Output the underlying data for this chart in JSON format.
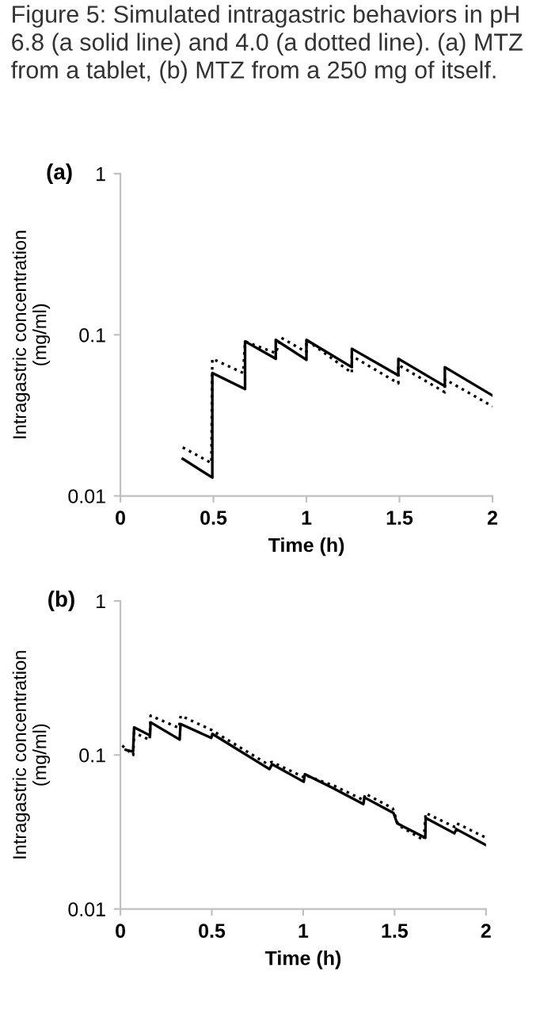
{
  "chart_data": [
    {
      "type": "line",
      "title": "Figure 5: Simulated intragastric behaviors in pH 6.8 (a solid line) and 4.0 (a dotted line). (a) MTZ from a tablet, (b) MTZ from a 250 mg of itself.",
      "annotations": [
        "(a)"
      ],
      "xlabel": "Time (h)",
      "ylabel": "Intragastric concentration\n(mg/ml)",
      "log": "y",
      "xlim": [
        0,
        2
      ],
      "ylim": [
        0.01,
        1
      ],
      "xticks": [
        0,
        0.5,
        1,
        1.5,
        2
      ],
      "yticks": [
        0.01,
        0.1,
        1
      ],
      "grid": false,
      "legend": false,
      "series": [
        {
          "color": "#000000",
          "line_style": "solid",
          "x": [
            0.335,
            0.494,
            0.494,
            0.67,
            0.67,
            0.835,
            0.835,
            1.0,
            1.0,
            1.244,
            1.244,
            1.494,
            1.494,
            1.744,
            1.744,
            2.0
          ],
          "values": [
            0.017,
            0.013,
            0.058,
            0.046,
            0.091,
            0.071,
            0.093,
            0.07,
            0.093,
            0.063,
            0.082,
            0.056,
            0.071,
            0.048,
            0.063,
            0.042
          ]
        },
        {
          "color": "#000000",
          "line_style": "dotted",
          "x": [
            0.335,
            0.489,
            0.494,
            0.66,
            0.67,
            0.835,
            0.864,
            1.0,
            1.0,
            1.244,
            1.244,
            1.494,
            1.494,
            1.744,
            1.744,
            2.0
          ],
          "values": [
            0.02,
            0.016,
            0.071,
            0.058,
            0.091,
            0.077,
            0.096,
            0.078,
            0.093,
            0.058,
            0.074,
            0.05,
            0.065,
            0.044,
            0.053,
            0.036
          ]
        }
      ]
    },
    {
      "type": "line",
      "annotations": [
        "(b)"
      ],
      "xlabel": "Time (h)",
      "ylabel": "Intragastric concentration\n(mg/ml)",
      "log": "y",
      "xlim": [
        0,
        2
      ],
      "ylim": [
        0.01,
        1
      ],
      "xticks": [
        0,
        0.5,
        1,
        1.5,
        2
      ],
      "yticks": [
        0.01,
        0.1,
        1
      ],
      "grid": false,
      "legend": false,
      "series": [
        {
          "color": "#000000",
          "line_style": "solid",
          "x": [
            0.029,
            0.069,
            0.075,
            0.162,
            0.165,
            0.324,
            0.329,
            0.497,
            0.503,
            0.815,
            0.83,
            1.003,
            1.009,
            1.162,
            1.329,
            1.335,
            1.494,
            1.514,
            1.668,
            1.67,
            1.827,
            1.838,
            2.0
          ],
          "values": [
            0.108,
            0.105,
            0.151,
            0.134,
            0.163,
            0.126,
            0.159,
            0.129,
            0.137,
            0.081,
            0.087,
            0.067,
            0.075,
            0.061,
            0.048,
            0.053,
            0.042,
            0.036,
            0.029,
            0.039,
            0.031,
            0.033,
            0.026
          ]
        },
        {
          "color": "#000000",
          "line_style": "dotted",
          "x": [
            0.01,
            0.07,
            0.075,
            0.16,
            0.165,
            0.32,
            0.33,
            0.5,
            0.52,
            0.8,
            0.83,
            1.0,
            1.01,
            1.17,
            1.33,
            1.34,
            1.49,
            1.52,
            1.66,
            1.67,
            1.83,
            1.84,
            2.0
          ],
          "values": [
            0.115,
            0.1,
            0.14,
            0.125,
            0.18,
            0.15,
            0.18,
            0.145,
            0.14,
            0.088,
            0.09,
            0.072,
            0.074,
            0.063,
            0.051,
            0.056,
            0.045,
            0.035,
            0.028,
            0.042,
            0.034,
            0.036,
            0.029
          ]
        }
      ]
    }
  ]
}
